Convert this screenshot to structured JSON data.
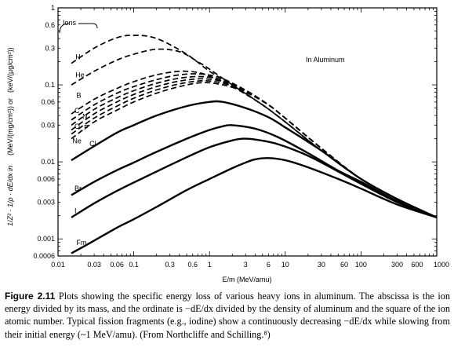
{
  "chart_data": {
    "type": "line",
    "scale": {
      "x": "log",
      "y": "log"
    },
    "xlim": [
      0.01,
      1000
    ],
    "ylim": [
      0.0006,
      1
    ],
    "xlabel": "E/m (MeV/amu)",
    "ylabel": {
      "prefix": "1/Z² · 1/ρ · dE/dx in",
      "unit1": "(MeV/(mg/cm²))",
      "or": "or",
      "unit2": "(keV/(μg/cm²))"
    },
    "xticks": [
      {
        "value": 0.01,
        "label": "0.01"
      },
      {
        "value": 0.03,
        "label": "0.03"
      },
      {
        "value": 0.06,
        "label": "0.06"
      },
      {
        "value": 0.1,
        "label": "0.1"
      },
      {
        "value": 0.3,
        "label": "0.3"
      },
      {
        "value": 0.6,
        "label": "0.6"
      },
      {
        "value": 1,
        "label": "1"
      },
      {
        "value": 3,
        "label": "3"
      },
      {
        "value": 6,
        "label": "6"
      },
      {
        "value": 10,
        "label": "10"
      },
      {
        "value": 30,
        "label": "30"
      },
      {
        "value": 60,
        "label": "60"
      },
      {
        "value": 100,
        "label": "100"
      },
      {
        "value": 300,
        "label": "300"
      },
      {
        "value": 600,
        "label": "600"
      },
      {
        "value": 1000,
        "label": "1000"
      }
    ],
    "yticks": [
      {
        "value": 1,
        "label": "1"
      },
      {
        "value": 0.6,
        "label": "0.6"
      },
      {
        "value": 0.3,
        "label": "0.3"
      },
      {
        "value": 0.1,
        "label": "0.1"
      },
      {
        "value": 0.06,
        "label": "0.06"
      },
      {
        "value": 0.03,
        "label": "0.03"
      },
      {
        "value": 0.01,
        "label": "0.01"
      },
      {
        "value": 0.006,
        "label": "0.006"
      },
      {
        "value": 0.003,
        "label": "0.003"
      },
      {
        "value": 0.001,
        "label": "0.001"
      },
      {
        "value": 0.0006,
        "label": "0.0006"
      }
    ],
    "annotations": {
      "ions_label": "Ions",
      "material_label": "In Aluminum"
    },
    "series": [
      {
        "name": "H",
        "style": "dashed",
        "x": [
          0.015,
          0.03,
          0.06,
          0.1,
          0.2,
          0.5,
          1,
          2,
          5,
          10,
          30,
          100,
          300,
          1000
        ],
        "y": [
          0.19,
          0.3,
          0.41,
          0.44,
          0.4,
          0.25,
          0.15,
          0.1,
          0.055,
          0.033,
          0.014,
          0.006,
          0.0033,
          0.0019
        ],
        "label_at": [
          0.017,
          0.215
        ]
      },
      {
        "name": "He",
        "style": "dashed",
        "x": [
          0.015,
          0.03,
          0.06,
          0.1,
          0.2,
          0.4,
          0.7,
          1,
          2,
          5,
          10,
          30,
          100,
          300,
          1000
        ],
        "y": [
          0.1,
          0.15,
          0.21,
          0.25,
          0.29,
          0.27,
          0.2,
          0.16,
          0.1,
          0.055,
          0.033,
          0.014,
          0.006,
          0.0033,
          0.0019
        ],
        "label_at": [
          0.017,
          0.125
        ]
      },
      {
        "name": "B",
        "style": "dashed",
        "x": [
          0.015,
          0.03,
          0.06,
          0.1,
          0.2,
          0.4,
          0.7,
          1,
          2,
          5,
          10,
          30,
          100,
          300,
          1000
        ],
        "y": [
          0.042,
          0.065,
          0.09,
          0.11,
          0.135,
          0.15,
          0.145,
          0.13,
          0.095,
          0.055,
          0.033,
          0.014,
          0.006,
          0.0033,
          0.0019
        ],
        "label_at": [
          0.0175,
          0.068
        ]
      },
      {
        "name": "C",
        "style": "dashed",
        "x": [
          0.015,
          0.03,
          0.06,
          0.1,
          0.2,
          0.4,
          0.8,
          1.5,
          3,
          6,
          10,
          30,
          100,
          300,
          1000
        ],
        "y": [
          0.035,
          0.055,
          0.078,
          0.095,
          0.117,
          0.135,
          0.138,
          0.12,
          0.085,
          0.055,
          0.037,
          0.015,
          0.006,
          0.0033,
          0.0019
        ],
        "label_at": [
          0.0165,
          0.043
        ]
      },
      {
        "name": "N",
        "style": "dashed",
        "x": [
          0.015,
          0.03,
          0.06,
          0.1,
          0.2,
          0.4,
          0.8,
          1.5,
          3,
          6,
          10,
          30,
          100,
          300,
          1000
        ],
        "y": [
          0.03,
          0.048,
          0.068,
          0.084,
          0.105,
          0.122,
          0.128,
          0.115,
          0.085,
          0.055,
          0.037,
          0.015,
          0.006,
          0.0033,
          0.0019
        ],
        "label_at": [
          0.021,
          0.036
        ]
      },
      {
        "name": "O",
        "style": "dashed",
        "x": [
          0.015,
          0.03,
          0.06,
          0.1,
          0.2,
          0.4,
          0.8,
          1.5,
          3,
          6,
          10,
          30,
          100,
          300,
          1000
        ],
        "y": [
          0.026,
          0.042,
          0.06,
          0.075,
          0.095,
          0.112,
          0.12,
          0.11,
          0.083,
          0.055,
          0.037,
          0.015,
          0.006,
          0.0033,
          0.0019
        ],
        "label_at": [
          0.0165,
          0.027
        ]
      },
      {
        "name": "F",
        "style": "dashed",
        "x": [
          0.015,
          0.03,
          0.06,
          0.1,
          0.2,
          0.4,
          0.8,
          1.5,
          3,
          6,
          10,
          30,
          100,
          300,
          1000
        ],
        "y": [
          0.023,
          0.037,
          0.053,
          0.067,
          0.086,
          0.103,
          0.113,
          0.105,
          0.082,
          0.055,
          0.037,
          0.015,
          0.006,
          0.0033,
          0.0019
        ],
        "label_at": [
          0.022,
          0.026
        ]
      },
      {
        "name": "Ne",
        "style": "dashed",
        "x": [
          0.015,
          0.03,
          0.06,
          0.1,
          0.2,
          0.4,
          0.8,
          1.5,
          3,
          6,
          10,
          30,
          100,
          300,
          1000
        ],
        "y": [
          0.02,
          0.033,
          0.047,
          0.06,
          0.078,
          0.095,
          0.107,
          0.1,
          0.08,
          0.055,
          0.037,
          0.015,
          0.006,
          0.0033,
          0.0019
        ],
        "label_at": [
          0.0155,
          0.0175
        ]
      },
      {
        "name": "Cl",
        "style": "solid",
        "x": [
          0.015,
          0.03,
          0.06,
          0.1,
          0.2,
          0.5,
          1,
          1.5,
          3,
          6,
          10,
          30,
          100,
          300,
          1000
        ],
        "y": [
          0.0105,
          0.016,
          0.024,
          0.03,
          0.04,
          0.053,
          0.06,
          0.06,
          0.05,
          0.038,
          0.028,
          0.014,
          0.006,
          0.0033,
          0.0019
        ],
        "label_at": [
          0.026,
          0.016
        ]
      },
      {
        "name": "Br",
        "style": "solid",
        "x": [
          0.015,
          0.03,
          0.06,
          0.1,
          0.2,
          0.5,
          1,
          1.5,
          2,
          4,
          8,
          20,
          50,
          100,
          300,
          1000
        ],
        "y": [
          0.0037,
          0.0055,
          0.0078,
          0.0098,
          0.0135,
          0.02,
          0.026,
          0.029,
          0.03,
          0.027,
          0.021,
          0.013,
          0.0077,
          0.0055,
          0.0031,
          0.0019
        ],
        "label_at": [
          0.0165,
          0.0042
        ]
      },
      {
        "name": "I",
        "style": "solid",
        "x": [
          0.015,
          0.03,
          0.06,
          0.1,
          0.2,
          0.5,
          1,
          2,
          2.8,
          4,
          8,
          20,
          50,
          100,
          300,
          1000
        ],
        "y": [
          0.0019,
          0.0029,
          0.0042,
          0.0054,
          0.0075,
          0.0115,
          0.0155,
          0.019,
          0.02,
          0.0195,
          0.017,
          0.012,
          0.0075,
          0.0052,
          0.003,
          0.0019
        ],
        "label_at": [
          0.0165,
          0.00215
        ]
      },
      {
        "name": "Fm",
        "style": "solid",
        "x": [
          0.015,
          0.03,
          0.06,
          0.1,
          0.2,
          0.5,
          1,
          2,
          3,
          4,
          6,
          10,
          20,
          50,
          100,
          300,
          1000
        ],
        "y": [
          0.00065,
          0.00095,
          0.0014,
          0.0018,
          0.0026,
          0.0043,
          0.006,
          0.0083,
          0.0098,
          0.0108,
          0.0112,
          0.0105,
          0.0085,
          0.006,
          0.0045,
          0.0028,
          0.0019
        ],
        "label_at": [
          0.0175,
          0.00083
        ]
      }
    ]
  },
  "caption": {
    "figure_number": "Figure 2.11",
    "text": "Plots showing the specific energy loss of various heavy ions in aluminum. The abscissa is the ion energy divided by its mass, and the ordinate is −dE/dx divided by the density of aluminum and the square of the ion atomic number. Typical fission fragments (e.g., iodine) show a continuously decreasing −dE/dx while slowing from their initial energy (~1 MeV/amu). (From Northcliffe and Schilling.⁸)"
  }
}
